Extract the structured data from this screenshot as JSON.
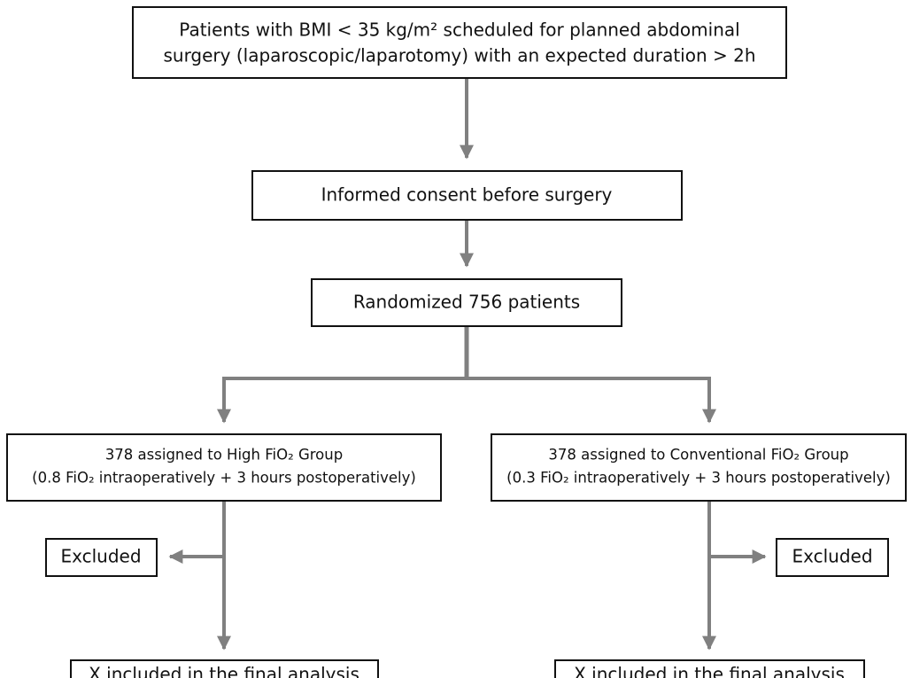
{
  "nodes": [
    {
      "lines": [
        "Patients with BMI < 35 kg/m² scheduled for planned abdominal",
        "surgery (laparoscopic/laparotomy) with an expected duration > 2h"
      ]
    },
    {
      "lines": [
        "Informed consent before surgery"
      ]
    },
    {
      "lines": [
        "Randomized 756 patients"
      ]
    },
    {
      "lines": [
        "378 assigned to High FiO₂ Group",
        "(0.8 FiO₂ intraoperatively + 3 hours postoperatively)"
      ]
    },
    {
      "lines": [
        "378 assigned to Conventional FiO₂ Group",
        "(0.3 FiO₂ intraoperatively + 3 hours postoperatively)"
      ]
    },
    {
      "lines": [
        "Excluded"
      ]
    },
    {
      "lines": [
        "Excluded"
      ]
    },
    {
      "lines": [
        "X included in the final analysis"
      ]
    },
    {
      "lines": [
        "X included in the final analysis"
      ]
    }
  ]
}
